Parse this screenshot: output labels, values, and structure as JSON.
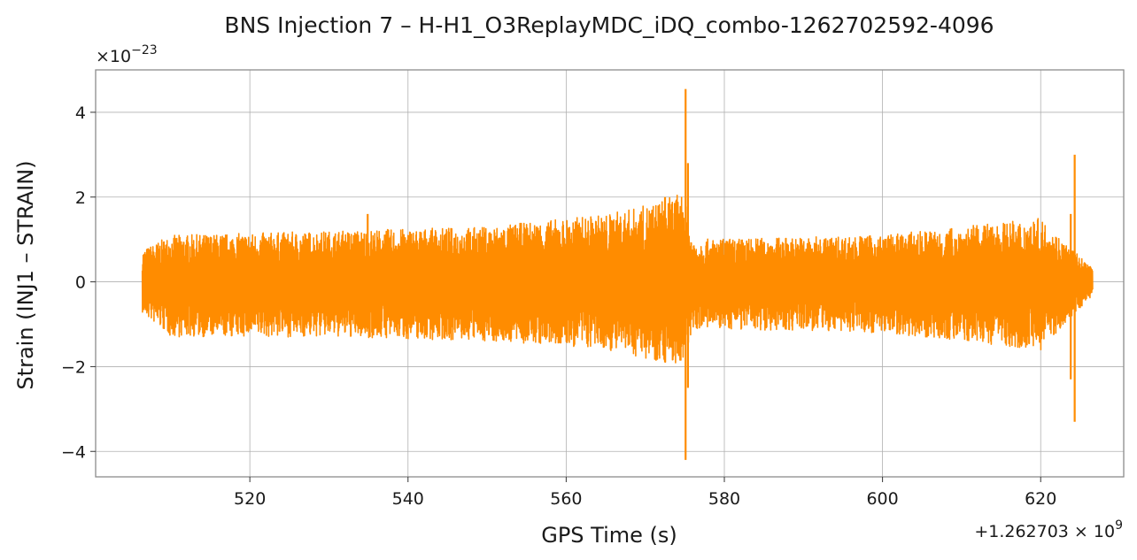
{
  "chart_data": {
    "type": "line",
    "title": "BNS Injection 7 – H-H1_O3ReplayMDC_iDQ_combo-1262702592-4096",
    "xlabel": "GPS Time (s)",
    "ylabel": "Strain (INJ1 – STRAIN)",
    "x_offset_text": "+1.262703 × 10^9",
    "y_scale_text": "×10^−23",
    "xlim": [
      500.5,
      630.5
    ],
    "ylim": [
      -4.6,
      5.0
    ],
    "xticks": [
      520,
      540,
      560,
      580,
      600,
      620
    ],
    "yticks": [
      -4,
      -2,
      0,
      2,
      4
    ],
    "xtick_labels": [
      "520",
      "540",
      "560",
      "580",
      "600",
      "620"
    ],
    "ytick_labels": [
      "−4",
      "−2",
      "0",
      "2",
      "4"
    ],
    "grid": true,
    "series": [
      {
        "color": "#ff8c00",
        "x_start": 506.4,
        "x_end": 626.6,
        "envelope": [
          {
            "x": 506.4,
            "y_max": 0.75,
            "y_min": -0.75
          },
          {
            "x": 510,
            "y_max": 1.1,
            "y_min": -1.3
          },
          {
            "x": 530,
            "y_max": 1.2,
            "y_min": -1.3
          },
          {
            "x": 550,
            "y_max": 1.3,
            "y_min": -1.4
          },
          {
            "x": 565,
            "y_max": 1.6,
            "y_min": -1.6
          },
          {
            "x": 570,
            "y_max": 1.8,
            "y_min": -1.8
          },
          {
            "x": 574.8,
            "y_max": 2.1,
            "y_min": -2.0
          },
          {
            "x": 576,
            "y_max": 1.0,
            "y_min": -1.1
          },
          {
            "x": 600,
            "y_max": 1.1,
            "y_min": -1.2
          },
          {
            "x": 620,
            "y_max": 1.5,
            "y_min": -1.6
          },
          {
            "x": 626.6,
            "y_max": 0.3,
            "y_min": -0.3
          }
        ],
        "spikes": [
          {
            "x": 575.1,
            "y_max": 4.55,
            "y_min": -4.2
          },
          {
            "x": 575.4,
            "y_max": 2.8,
            "y_min": -2.5
          },
          {
            "x": 624.3,
            "y_max": 3.0,
            "y_min": -3.3
          },
          {
            "x": 623.8,
            "y_max": 1.6,
            "y_min": -2.3
          },
          {
            "x": 534.9,
            "y_max": 1.6,
            "y_min": -1.1
          },
          {
            "x": 572.5,
            "y_max": 2.0,
            "y_min": -1.9
          }
        ]
      }
    ]
  }
}
